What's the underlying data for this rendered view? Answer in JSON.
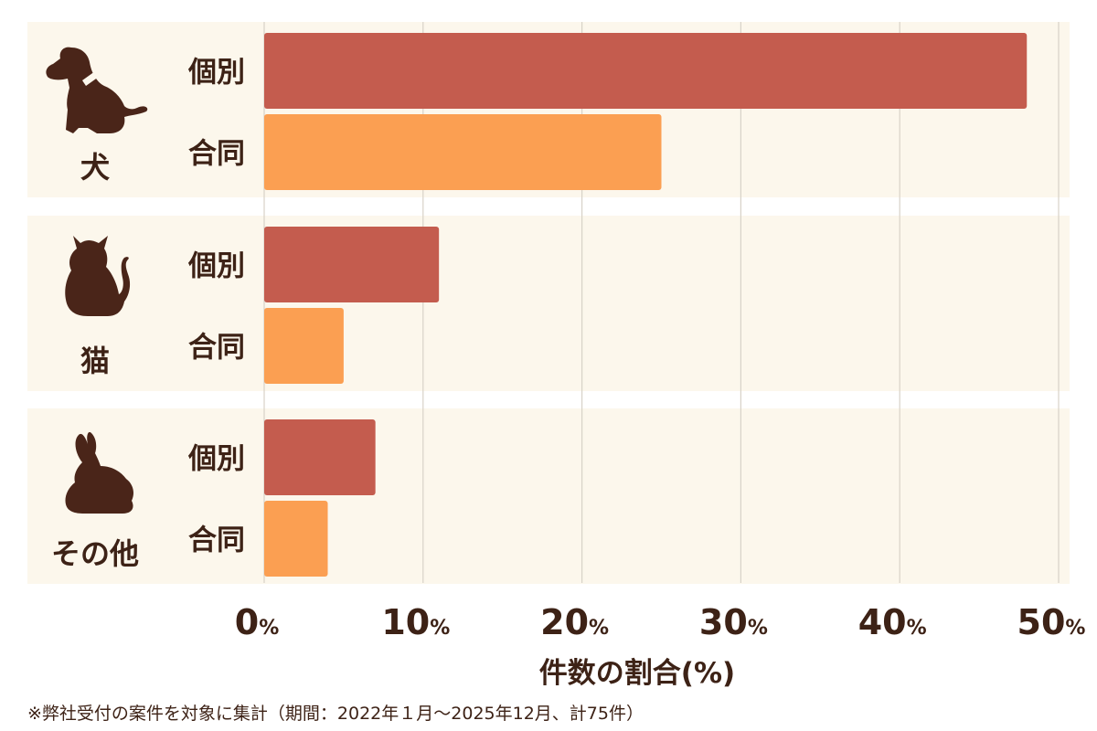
{
  "chart_data": {
    "type": "bar",
    "orientation": "horizontal",
    "groups": [
      {
        "label": "犬",
        "icon": "dog-icon"
      },
      {
        "label": "猫",
        "icon": "cat-icon"
      },
      {
        "label": "その他",
        "icon": "rabbit-icon"
      }
    ],
    "bar_labels": [
      "個別",
      "合同"
    ],
    "series": [
      {
        "name": "個別",
        "values": [
          48,
          11,
          7
        ],
        "color": "#c45c4e"
      },
      {
        "name": "合同",
        "values": [
          25,
          5,
          4
        ],
        "color": "#fb9f52"
      }
    ],
    "x_ticks": [
      0,
      10,
      20,
      30,
      40,
      50
    ],
    "tick_suffix": "%",
    "xlim": [
      0,
      50
    ],
    "xlabel": "件数の割合(%)",
    "grid": true,
    "legend": "none"
  },
  "footnote": "※弊社受付の案件を対象に集計（期間：2022年１月〜2025年12月、計75件）",
  "colors": {
    "panel_bg": "#fcf7ec",
    "grid": "#d8d2c8",
    "text": "#3d2216",
    "icon": "#4a2519"
  }
}
